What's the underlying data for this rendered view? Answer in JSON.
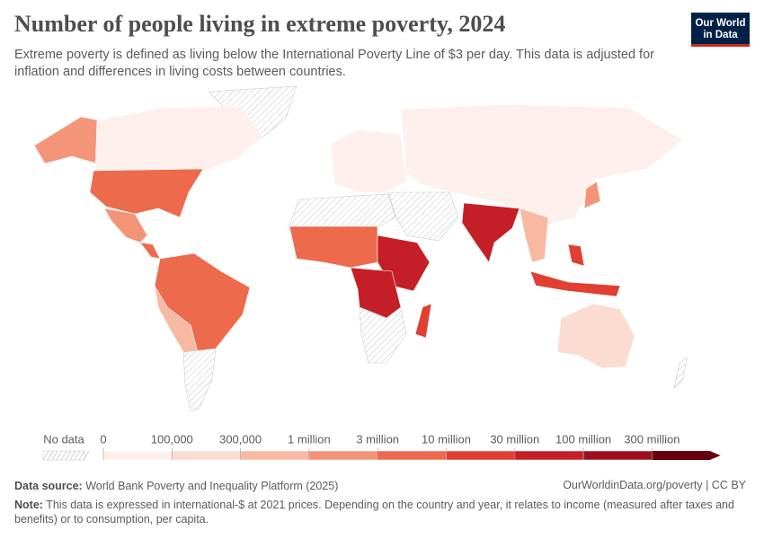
{
  "header": {
    "title": "Number of people living in extreme poverty, 2024",
    "subtitle": "Extreme poverty is defined as living below the International Poverty Line of $3 per day. This data is adjusted for inflation and differences in living costs between countries.",
    "logo": [
      "Our World",
      "in Data"
    ]
  },
  "legend": {
    "no_data": "No data",
    "ticks": [
      0,
      {
        "value": 100000,
        "label": "100,000"
      },
      {
        "value": 300000,
        "label": "300,000"
      },
      {
        "value": 1000000,
        "label": "1 million"
      },
      {
        "value": 3000000,
        "label": "3 million"
      },
      {
        "value": 10000000,
        "label": "10 million"
      },
      {
        "value": 30000000,
        "label": "30 million"
      },
      {
        "value": 100000000,
        "label": "100 million"
      },
      {
        "value": 300000000,
        "label": "300 million"
      }
    ],
    "colors": [
      "#fdf0ec",
      "#fbdcd0",
      "#f8b9a2",
      "#f49477",
      "#ed6a4d",
      "#e03f31",
      "#c41f26",
      "#9c0f1f",
      "#67000d"
    ]
  },
  "footer": {
    "source_label": "Data source:",
    "source": "World Bank Poverty and Inequality Platform (2025)",
    "link": "OurWorldinData.org/poverty | CC BY",
    "note_label": "Note:",
    "note": "This data is expressed in international-$ at 2021 prices. Depending on the country and year, it relates to income (measured after taxes and benefits) or to consumption, per capita."
  }
}
